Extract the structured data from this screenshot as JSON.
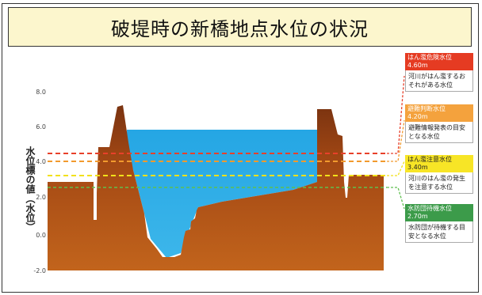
{
  "title": "破堤時の新橋地点水位の状況",
  "axis": {
    "ylabel": "水位標の値（水位）",
    "ticks": [
      "8.0",
      "6.0",
      "4.0",
      "2.0",
      "0.0",
      "-2.0"
    ]
  },
  "levels": {
    "danger": {
      "name": "はん濫危険水位",
      "value": "4.60m",
      "desc": "河川がはん濫するおそれがある水位",
      "color": "#e53b22",
      "line_color": "#e8402a"
    },
    "evac": {
      "name": "避難判断水位",
      "value": "4.20m",
      "desc": "避難情報発表の目安となる水位",
      "color": "#f4a23d",
      "line_color": "#f29a2e"
    },
    "caution": {
      "name": "はん濫注意水位",
      "value": "3.40m",
      "desc": "河川のはん濫の発生を注意する水位",
      "color": "#f7e526",
      "line_color": "#f2e11a"
    },
    "standby": {
      "name": "水防団待機水位",
      "value": "2.70m",
      "desc": "水防団が待機する目安となる水位",
      "color": "#3c9b4a",
      "line_color": "#5fbf4f"
    }
  },
  "colors": {
    "ground": "#a84a18",
    "water": "#2aaae6",
    "background": "#ffffff"
  }
}
